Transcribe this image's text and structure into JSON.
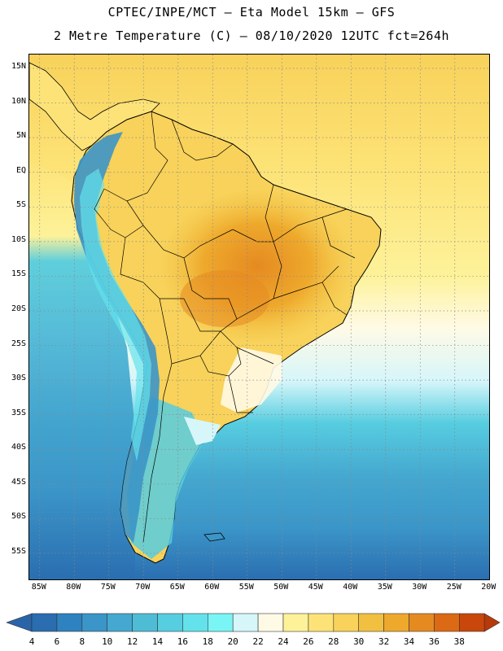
{
  "header": {
    "line1": "CPTEC/INPE/MCT –  Eta Model 15km – GFS",
    "line2": "2 Metre Temperature (C) – 08/10/2020 12UTC fct=264h"
  },
  "map": {
    "lat_ticks": [
      "15N",
      "10N",
      "5N",
      "EQ",
      "5S",
      "10S",
      "15S",
      "20S",
      "25S",
      "30S",
      "35S",
      "40S",
      "45S",
      "50S",
      "55S"
    ],
    "lon_ticks": [
      "85W",
      "80W",
      "75W",
      "70W",
      "65W",
      "60W",
      "55W",
      "50W",
      "45W",
      "40W",
      "35W",
      "30W",
      "25W",
      "20W"
    ],
    "lat_values": [
      15,
      10,
      5,
      0,
      -5,
      -10,
      -15,
      -20,
      -25,
      -30,
      -35,
      -40,
      -45,
      -50,
      -55
    ],
    "lon_values": [
      -85,
      -80,
      -75,
      -70,
      -65,
      -60,
      -55,
      -50,
      -45,
      -40,
      -35,
      -30,
      -25,
      -20
    ],
    "grid": "dotted"
  },
  "colorbar": {
    "labels": [
      "4",
      "6",
      "8",
      "10",
      "12",
      "14",
      "16",
      "18",
      "20",
      "22",
      "24",
      "26",
      "28",
      "30",
      "32",
      "34",
      "36",
      "38"
    ],
    "colors": [
      "#2a6db0",
      "#2e82bf",
      "#3b95c8",
      "#45a8d0",
      "#4fbcd6",
      "#57cde0",
      "#63e2ec",
      "#7af5f5",
      "#d6f6fa",
      "#fffae6",
      "#fdf29a",
      "#fde377",
      "#f8d25a",
      "#f2c040",
      "#eea92c",
      "#e58a21",
      "#dc6a14",
      "#c9470a"
    ],
    "low_arrow_color": "#2a64a8",
    "high_arrow_color": "#b83a08"
  }
}
